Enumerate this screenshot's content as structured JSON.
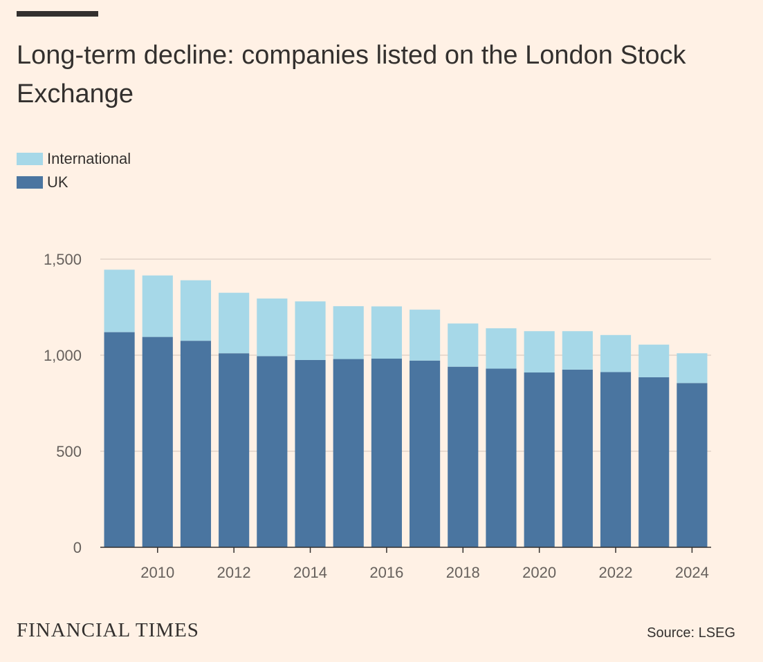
{
  "header": {
    "title": "Long-term decline: companies listed on the London Stock Exchange"
  },
  "legend": [
    {
      "label": "International",
      "color": "#a6d8e8"
    },
    {
      "label": "UK",
      "color": "#4a75a0"
    }
  ],
  "footer": {
    "brand": "FINANCIAL TIMES",
    "source": "Source: LSEG"
  },
  "chart_data": {
    "type": "bar",
    "stacked": true,
    "title": "Long-term decline: companies listed on the London Stock Exchange",
    "xlabel": "",
    "ylabel": "",
    "ylim": [
      0,
      1500
    ],
    "yticks": [
      0,
      500,
      1000,
      1500
    ],
    "ytick_labels": [
      "0",
      "500",
      "1,000",
      "1,500"
    ],
    "xtick_labels": [
      "2010",
      "2012",
      "2014",
      "2016",
      "2018",
      "2020",
      "2022",
      "2024"
    ],
    "grid": true,
    "legend_position": "top-left",
    "categories": [
      "2009",
      "2010",
      "2011",
      "2012",
      "2013",
      "2014",
      "2015",
      "2016",
      "2017",
      "2018",
      "2019",
      "2020",
      "2021",
      "2022",
      "2023",
      "2024"
    ],
    "series": [
      {
        "name": "UK",
        "color": "#4a75a0",
        "values": [
          1120,
          1095,
          1075,
          1010,
          995,
          975,
          980,
          982,
          972,
          940,
          930,
          910,
          925,
          912,
          885,
          855
        ]
      },
      {
        "name": "International",
        "color": "#a6d8e8",
        "values": [
          325,
          320,
          315,
          315,
          300,
          305,
          275,
          272,
          265,
          225,
          210,
          215,
          200,
          193,
          170,
          155
        ]
      }
    ]
  }
}
